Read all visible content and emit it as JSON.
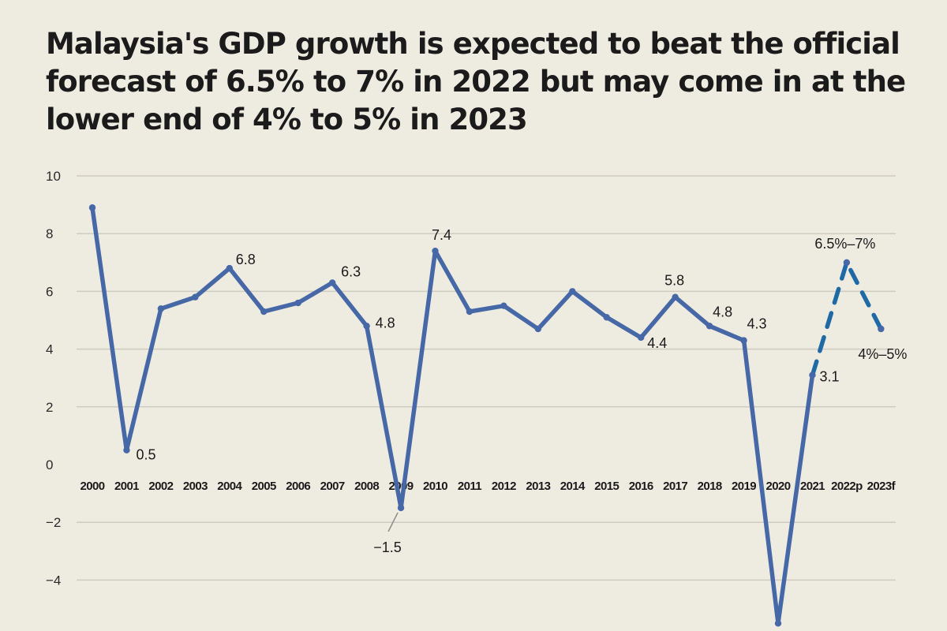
{
  "colors": {
    "background": "#eeebe1",
    "line": "#4768a6",
    "forecast": "#1f6aa5",
    "grid": "#cfcbc0"
  },
  "chart_data": {
    "type": "line",
    "title": "Malaysia's GDP growth is expected to beat the official forecast of 6.5% to 7% in 2022 but may come in at the lower end of 4% to 5% in 2023",
    "xlabel": "",
    "ylabel": "",
    "categories": [
      "2000",
      "2001",
      "2002",
      "2003",
      "2004",
      "2005",
      "2006",
      "2007",
      "2008",
      "2009",
      "2010",
      "2011",
      "2012",
      "2013",
      "2014",
      "2015",
      "2016",
      "2017",
      "2018",
      "2019",
      "2020",
      "2021",
      "2022p",
      "2023f"
    ],
    "yticks": [
      10,
      8,
      6,
      4,
      2,
      0,
      -2,
      -4
    ],
    "ytick_labels": [
      "10",
      "8",
      "6",
      "4",
      "2",
      "0",
      "−2",
      "−4"
    ],
    "ylim": [
      -5.4,
      10
    ],
    "grid": true,
    "series": [
      {
        "values": [
          8.9,
          0.5,
          5.4,
          5.8,
          6.8,
          5.3,
          5.6,
          6.3,
          4.8,
          -1.5,
          7.4,
          5.3,
          5.5,
          4.7,
          6.0,
          5.1,
          4.4,
          5.8,
          4.8,
          4.3,
          -5.5,
          3.1,
          null,
          null
        ]
      },
      {
        "style": "dashed",
        "values": [
          null,
          null,
          null,
          null,
          null,
          null,
          null,
          null,
          null,
          null,
          null,
          null,
          null,
          null,
          null,
          null,
          null,
          null,
          null,
          null,
          null,
          3.1,
          7.0,
          4.7
        ]
      }
    ],
    "data_labels": [
      {
        "category": "2001",
        "text": "0.5"
      },
      {
        "category": "2004",
        "text": "6.8"
      },
      {
        "category": "2007",
        "text": "6.3"
      },
      {
        "category": "2008",
        "text": "4.8"
      },
      {
        "category": "2009",
        "text": "−1.5"
      },
      {
        "category": "2010",
        "text": "7.4"
      },
      {
        "category": "2016",
        "text": "4.4"
      },
      {
        "category": "2017",
        "text": "5.8"
      },
      {
        "category": "2018",
        "text": "4.8"
      },
      {
        "category": "2019",
        "text": "4.3"
      },
      {
        "category": "2021",
        "text": "3.1"
      },
      {
        "category": "2022p",
        "text": "6.5%–7%"
      },
      {
        "category": "2023f",
        "text": "4%–5%"
      }
    ]
  }
}
